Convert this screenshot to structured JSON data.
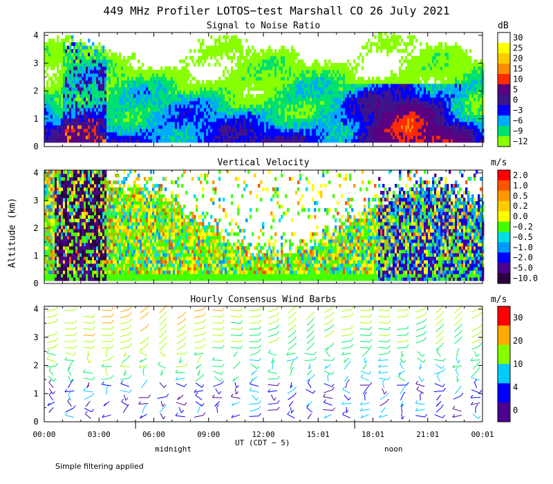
{
  "title": "449 MHz Profiler LOTOS−test Marshall CO 26 July 2021",
  "y_axis_label": "Altitude (km)",
  "x_axis_label": "UT  (CDT − 5)",
  "annotations": {
    "midnight": "midnight",
    "noon": "noon"
  },
  "footnote": "Simple filtering applied",
  "chart_data": [
    {
      "type": "heatmap",
      "title": "Signal to Noise Ratio",
      "unit": "dB",
      "x_ticks": [
        "00:00",
        "03:00",
        "06:00",
        "09:00",
        "12:00",
        "15:01",
        "18:01",
        "21:01",
        "00:01"
      ],
      "y_ticks": [
        "0",
        "1",
        "2",
        "3",
        "4"
      ],
      "ylim": [
        0,
        4.1
      ],
      "colorbar": {
        "labels": [
          "30",
          "25",
          "20",
          "15",
          "10",
          "5",
          "0",
          "−3",
          "−6",
          "−9",
          "−12"
        ],
        "colors": [
          "#ffffff",
          "#ffff00",
          "#ffcc00",
          "#ff8c00",
          "#ff2a00",
          "#5a0080",
          "#3c148c",
          "#0000ff",
          "#00aaff",
          "#00e070",
          "#88ff00"
        ]
      }
    },
    {
      "type": "heatmap",
      "title": "Vertical Velocity",
      "unit": "m/s",
      "x_ticks": [
        "00:00",
        "03:00",
        "06:00",
        "09:00",
        "12:00",
        "15:01",
        "18:01",
        "21:01",
        "00:01"
      ],
      "y_ticks": [
        "0",
        "1",
        "2",
        "3",
        "4"
      ],
      "ylim": [
        0,
        4.1
      ],
      "colorbar": {
        "labels": [
          "2.0",
          "1.0",
          "0.5",
          "0.2",
          "0.0",
          "−0.2",
          "−0.5",
          "−1.0",
          "−2.0",
          "−5.0",
          "−10.0"
        ],
        "colors": [
          "#ff0000",
          "#ff5500",
          "#ff9900",
          "#ffcc00",
          "#ffff00",
          "#44ff00",
          "#00e0e0",
          "#0099ff",
          "#0000ff",
          "#4b0090",
          "#2b0040"
        ]
      }
    },
    {
      "type": "wind barbs",
      "title": "Hourly Consensus Wind Barbs",
      "unit": "m/s",
      "x_ticks": [
        "00:00",
        "03:00",
        "06:00",
        "09:00",
        "12:00",
        "15:01",
        "18:01",
        "21:01",
        "00:01"
      ],
      "y_ticks": [
        "0",
        "1",
        "2",
        "3",
        "4"
      ],
      "ylim": [
        0,
        4.1
      ],
      "colorbar": {
        "labels": [
          "30",
          "20",
          "10",
          "4",
          "0"
        ],
        "colors": [
          "#ff0000",
          "#ffaa00",
          "#88ff00",
          "#00ccff",
          "#0000ff",
          "#4b0090"
        ]
      }
    }
  ]
}
